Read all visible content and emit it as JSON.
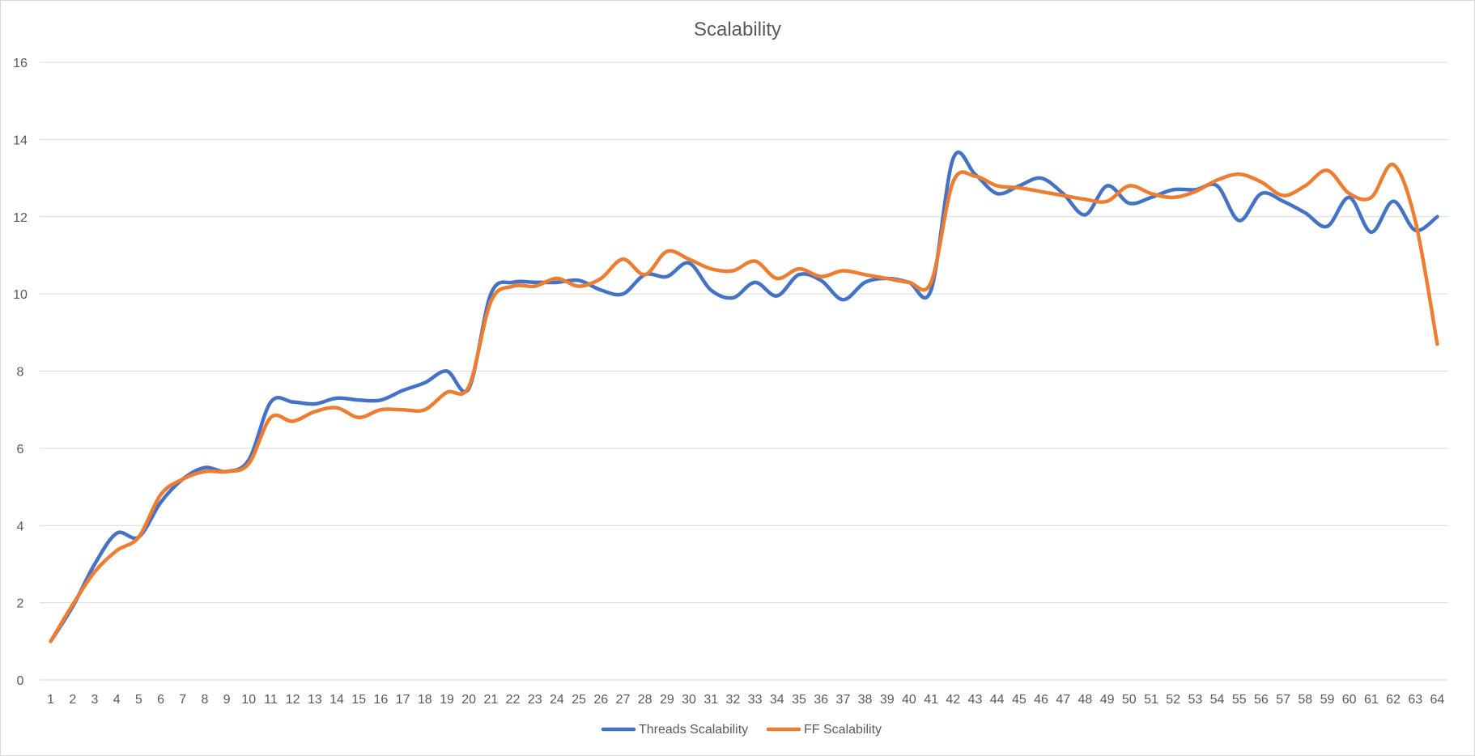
{
  "chart_data": {
    "type": "line",
    "title": "Scalability",
    "xlabel": "",
    "ylabel": "",
    "ylim": [
      0,
      16
    ],
    "yticks": [
      0,
      2,
      4,
      6,
      8,
      10,
      12,
      14,
      16
    ],
    "grid": true,
    "legend_position": "bottom",
    "x": [
      1,
      2,
      3,
      4,
      5,
      6,
      7,
      8,
      9,
      10,
      11,
      12,
      13,
      14,
      15,
      16,
      17,
      18,
      19,
      20,
      21,
      22,
      23,
      24,
      25,
      26,
      27,
      28,
      29,
      30,
      31,
      32,
      33,
      34,
      35,
      36,
      37,
      38,
      39,
      40,
      41,
      42,
      43,
      44,
      45,
      46,
      47,
      48,
      49,
      50,
      51,
      52,
      53,
      54,
      55,
      56,
      57,
      58,
      59,
      60,
      61,
      62,
      63,
      64
    ],
    "series": [
      {
        "name": "Threads Scalability",
        "color": "#4472C4",
        "values": [
          1.0,
          1.9,
          3.0,
          3.8,
          3.7,
          4.6,
          5.2,
          5.5,
          5.4,
          5.7,
          7.2,
          7.2,
          7.15,
          7.3,
          7.25,
          7.25,
          7.5,
          7.7,
          8.0,
          7.55,
          10.0,
          10.3,
          10.3,
          10.3,
          10.35,
          10.1,
          10.0,
          10.5,
          10.45,
          10.8,
          10.1,
          9.9,
          10.3,
          9.95,
          10.5,
          10.35,
          9.85,
          10.3,
          10.4,
          10.3,
          10.1,
          13.5,
          13.1,
          12.6,
          12.8,
          13.0,
          12.6,
          12.05,
          12.8,
          12.35,
          12.5,
          12.7,
          12.7,
          12.8,
          11.9,
          12.6,
          12.4,
          12.1,
          11.75,
          12.5,
          11.6,
          12.4,
          11.65,
          12.0
        ]
      },
      {
        "name": "FF Scalability",
        "color": "#ED7D31",
        "values": [
          1.0,
          1.95,
          2.8,
          3.35,
          3.7,
          4.8,
          5.2,
          5.4,
          5.4,
          5.6,
          6.8,
          6.7,
          6.95,
          7.05,
          6.8,
          7.0,
          7.0,
          7.0,
          7.45,
          7.6,
          9.8,
          10.2,
          10.2,
          10.4,
          10.2,
          10.4,
          10.9,
          10.5,
          11.1,
          10.9,
          10.65,
          10.6,
          10.85,
          10.4,
          10.65,
          10.45,
          10.6,
          10.5,
          10.4,
          10.3,
          10.3,
          12.9,
          13.05,
          12.8,
          12.75,
          12.65,
          12.55,
          12.45,
          12.4,
          12.8,
          12.6,
          12.5,
          12.65,
          12.95,
          13.1,
          12.9,
          12.55,
          12.8,
          13.2,
          12.6,
          12.5,
          13.35,
          11.9,
          8.7
        ]
      }
    ]
  }
}
